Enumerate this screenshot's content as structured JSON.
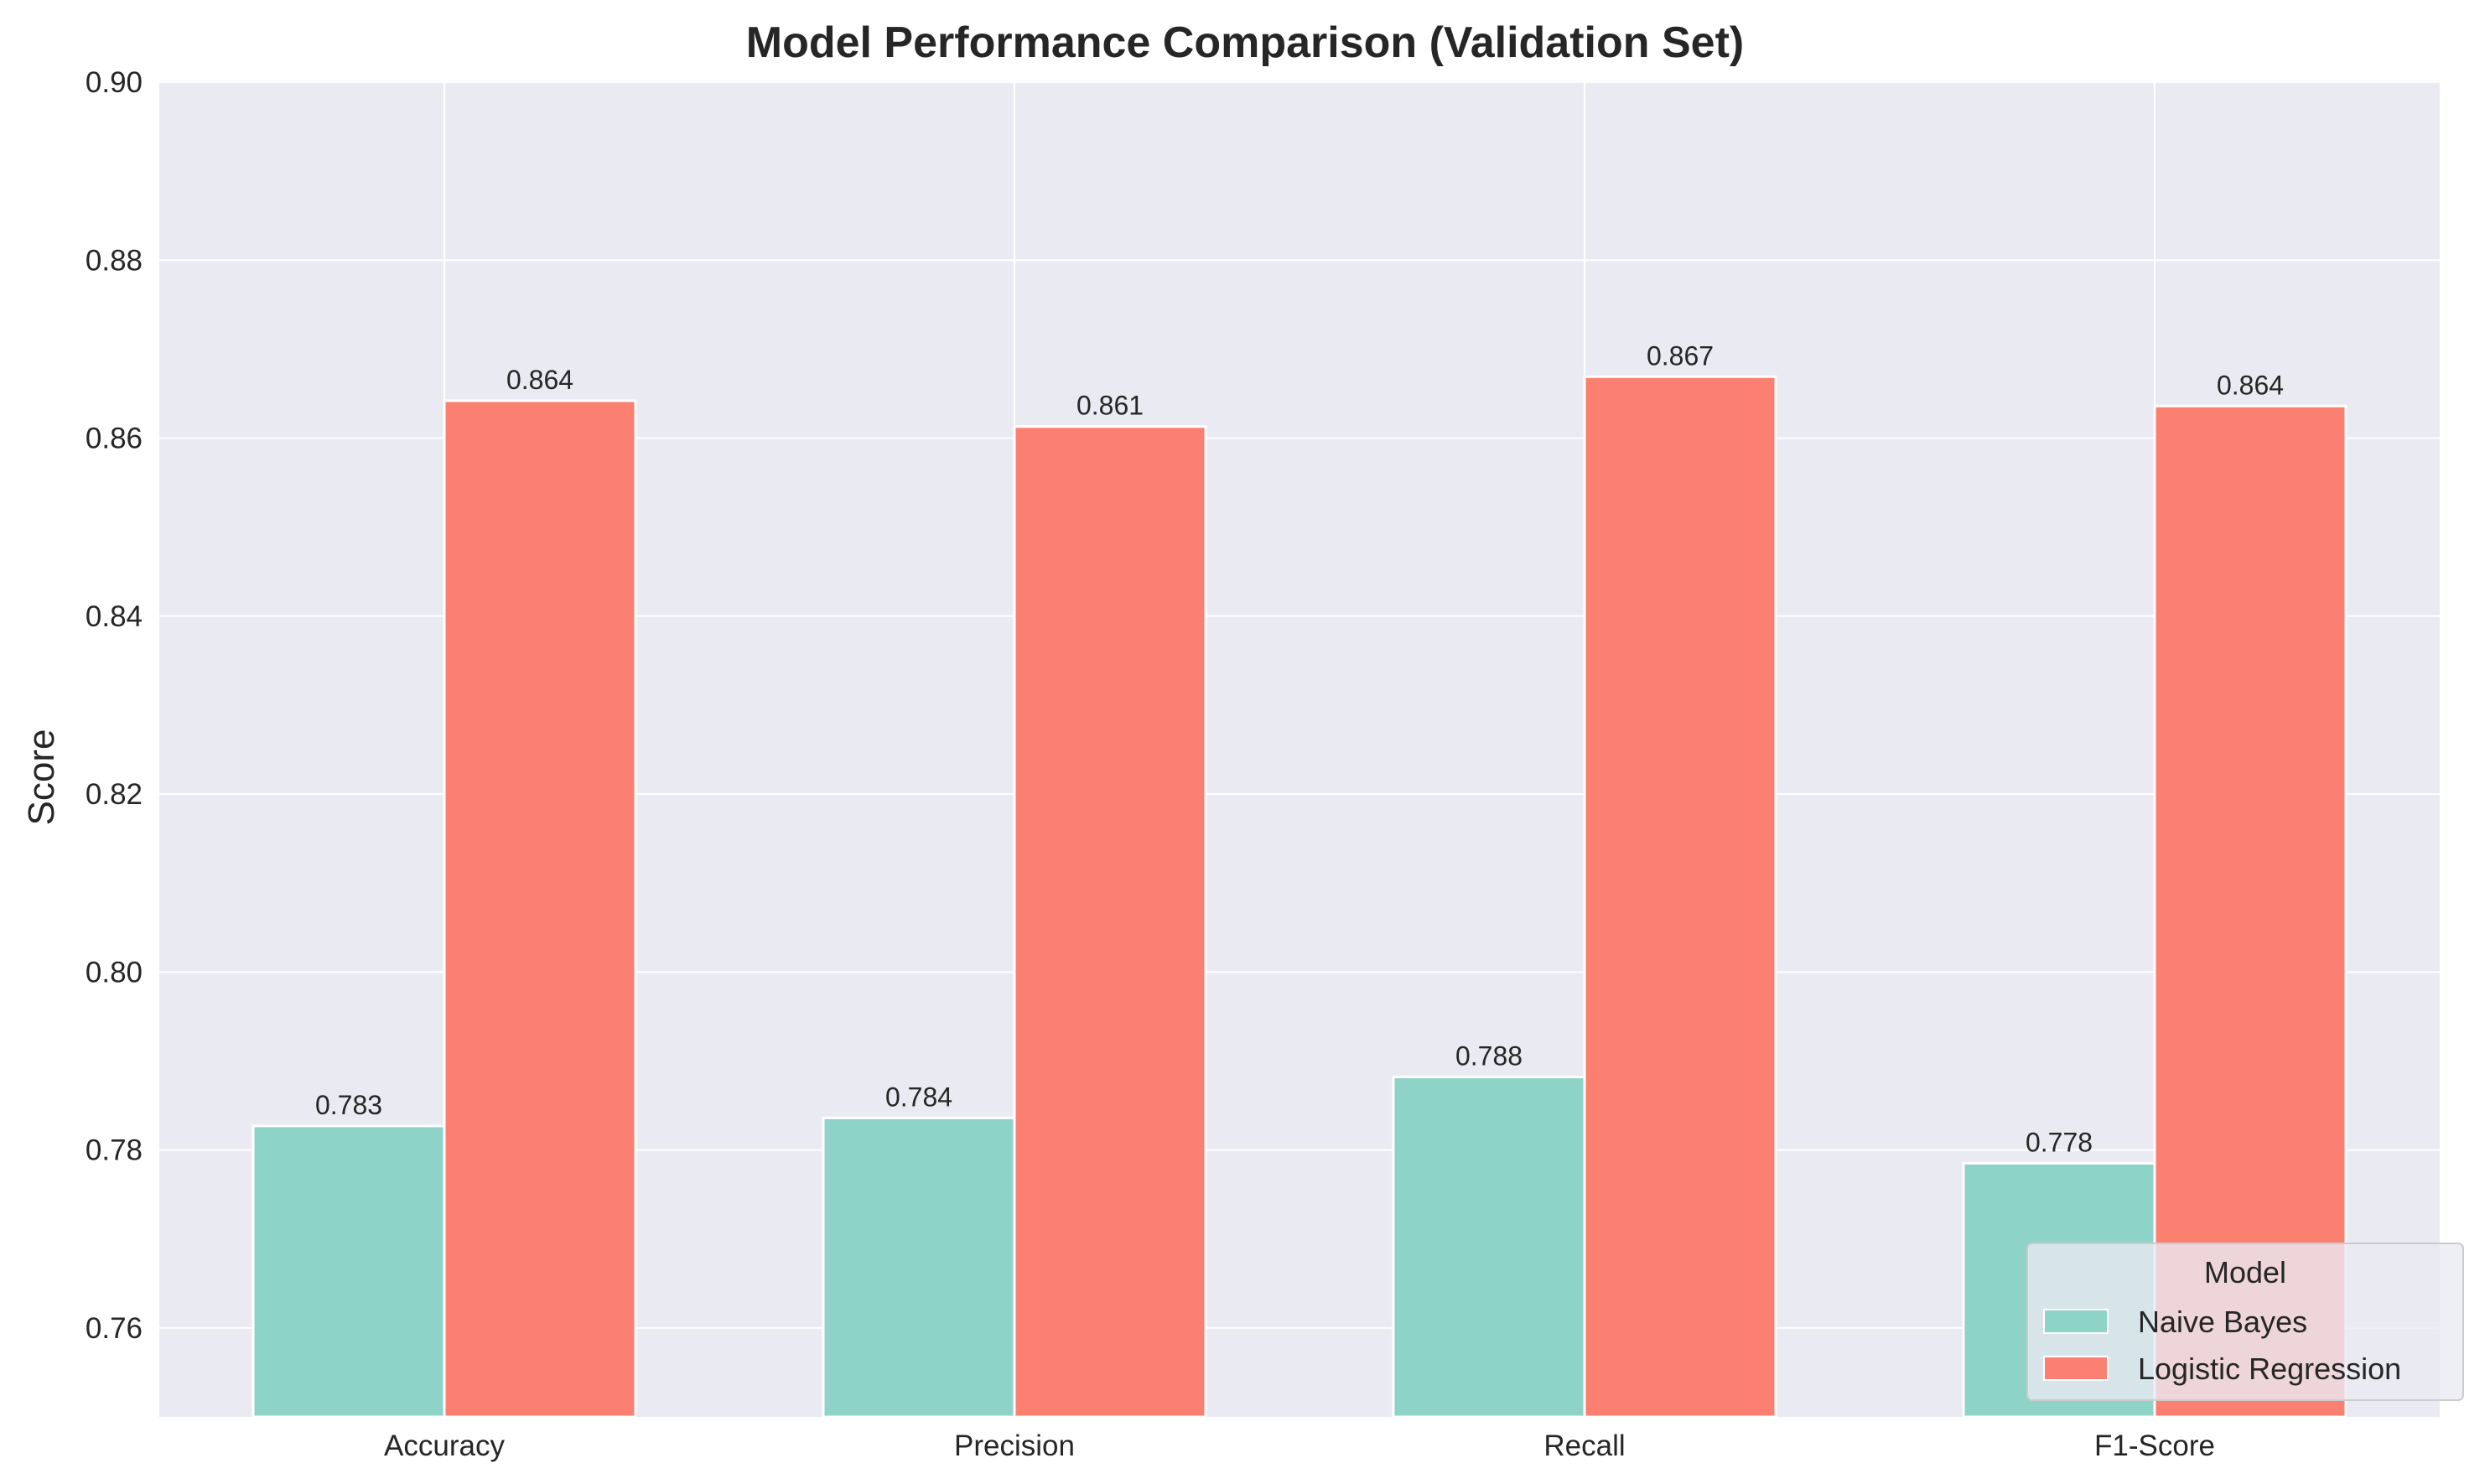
{
  "chart_data": {
    "type": "bar",
    "title": "Model Performance Comparison (Validation Set)",
    "xlabel": "",
    "ylabel": "Score",
    "ylim": [
      0.75,
      0.9
    ],
    "yticks": [
      "0.76",
      "0.78",
      "0.80",
      "0.82",
      "0.84",
      "0.86",
      "0.88",
      "0.90"
    ],
    "categories": [
      "Accuracy",
      "Precision",
      "Recall",
      "F1-Score"
    ],
    "series": [
      {
        "name": "Naive Bayes",
        "color": "#8dd3c7",
        "values": [
          0.7827,
          0.7836,
          0.7882,
          0.7785
        ],
        "labels": [
          "0.783",
          "0.784",
          "0.788",
          "0.778"
        ]
      },
      {
        "name": "Logistic Regression",
        "color": "#fb8072",
        "values": [
          0.8642,
          0.8613,
          0.8669,
          0.8636
        ],
        "labels": [
          "0.864",
          "0.861",
          "0.867",
          "0.864"
        ]
      }
    ],
    "grid": true,
    "legend": {
      "title": "Model",
      "position": "lower-right"
    },
    "colors": {
      "plot_background": "#eaeaf2",
      "grid": "#ffffff"
    }
  }
}
